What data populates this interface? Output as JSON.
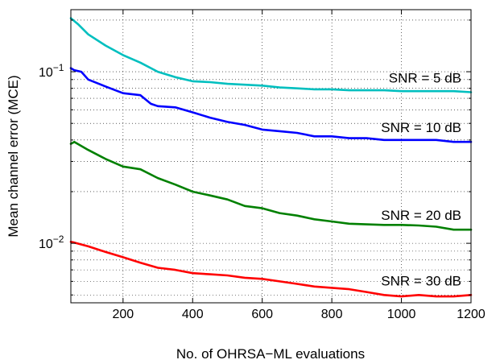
{
  "chart_data": {
    "type": "line",
    "title": "",
    "xlabel": "No. of OHRSA−ML evaluations",
    "ylabel": "Mean channel error (MCE)",
    "xlim": [
      50,
      1200
    ],
    "ylim": [
      0.0045,
      0.23
    ],
    "yscale": "log",
    "grid": true,
    "x_ticks": [
      200,
      400,
      600,
      800,
      1000,
      1200
    ],
    "x_tick_labels": [
      "200",
      "400",
      "600",
      "800",
      "1000",
      "1200"
    ],
    "y_ticks": [
      0.01,
      0.1
    ],
    "y_tick_labels": [
      {
        "base": "10",
        "exp": "−2"
      },
      {
        "base": "10",
        "exp": "−1"
      }
    ],
    "series": [
      {
        "label": "SNR = 5 dB",
        "color": "#00bfbf",
        "x": [
          50,
          70,
          100,
          150,
          200,
          250,
          300,
          350,
          400,
          450,
          500,
          550,
          600,
          650,
          700,
          750,
          800,
          850,
          900,
          950,
          1000,
          1050,
          1100,
          1150,
          1200
        ],
        "y": [
          0.205,
          0.19,
          0.165,
          0.142,
          0.125,
          0.113,
          0.1,
          0.093,
          0.088,
          0.087,
          0.085,
          0.084,
          0.083,
          0.081,
          0.08,
          0.079,
          0.079,
          0.078,
          0.078,
          0.078,
          0.077,
          0.077,
          0.077,
          0.077,
          0.076
        ]
      },
      {
        "label": "SNR = 10 dB",
        "color": "#0000ff",
        "x": [
          50,
          60,
          80,
          100,
          150,
          200,
          250,
          280,
          300,
          350,
          400,
          450,
          500,
          550,
          600,
          650,
          700,
          750,
          800,
          850,
          900,
          950,
          1000,
          1050,
          1100,
          1150,
          1200
        ],
        "y": [
          0.105,
          0.102,
          0.1,
          0.09,
          0.082,
          0.075,
          0.073,
          0.065,
          0.063,
          0.062,
          0.058,
          0.054,
          0.051,
          0.049,
          0.046,
          0.045,
          0.044,
          0.042,
          0.042,
          0.041,
          0.041,
          0.04,
          0.04,
          0.04,
          0.04,
          0.039,
          0.039
        ]
      },
      {
        "label": "SNR = 20 dB",
        "color": "#008000",
        "x": [
          50,
          60,
          100,
          150,
          200,
          250,
          300,
          350,
          400,
          450,
          500,
          550,
          600,
          650,
          700,
          750,
          800,
          850,
          900,
          950,
          1000,
          1050,
          1100,
          1150,
          1200
        ],
        "y": [
          0.038,
          0.039,
          0.035,
          0.031,
          0.028,
          0.027,
          0.024,
          0.022,
          0.02,
          0.019,
          0.018,
          0.0165,
          0.016,
          0.015,
          0.0145,
          0.0138,
          0.0134,
          0.013,
          0.0129,
          0.0128,
          0.0128,
          0.0127,
          0.0125,
          0.012,
          0.012
        ]
      },
      {
        "label": "SNR = 30 dB",
        "color": "#ff0000",
        "x": [
          50,
          60,
          100,
          150,
          200,
          250,
          300,
          350,
          400,
          450,
          500,
          550,
          600,
          650,
          700,
          750,
          800,
          850,
          900,
          950,
          1000,
          1050,
          1100,
          1150,
          1200
        ],
        "y": [
          0.0102,
          0.0101,
          0.0096,
          0.0089,
          0.0083,
          0.0077,
          0.0072,
          0.007,
          0.0067,
          0.0066,
          0.0065,
          0.0063,
          0.0062,
          0.006,
          0.0058,
          0.0056,
          0.0055,
          0.0054,
          0.0052,
          0.005,
          0.0049,
          0.005,
          0.0049,
          0.0049,
          0.005
        ]
      }
    ]
  }
}
